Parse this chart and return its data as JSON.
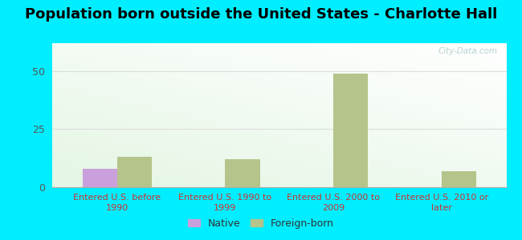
{
  "title": "Population born outside the United States - Charlotte Hall",
  "categories": [
    "Entered U.S. before\n1990",
    "Entered U.S. 1990 to\n1999",
    "Entered U.S. 2000 to\n2009",
    "Entered U.S. 2010 or\nlater"
  ],
  "native_values": [
    8,
    0,
    0,
    0
  ],
  "foreign_born_values": [
    13,
    12,
    49,
    7
  ],
  "native_color": "#c9a0dc",
  "foreign_born_color": "#b5c48a",
  "background_outer": "#00eeff",
  "ylim": [
    0,
    62
  ],
  "yticks": [
    0,
    25,
    50
  ],
  "bar_width": 0.32,
  "title_fontsize": 13,
  "tick_label_fontsize": 8,
  "legend_fontsize": 9,
  "axis_label_color": "#cc3333",
  "ytick_color": "#555555",
  "watermark": "City-Data.com",
  "grid_color": "#dddddd",
  "bg_color_topleft": "#c8eec0",
  "bg_color_topright": "#eefff8",
  "bg_color_bottomleft": "#c8eec0",
  "bg_color_bottomright": "#eefff8"
}
